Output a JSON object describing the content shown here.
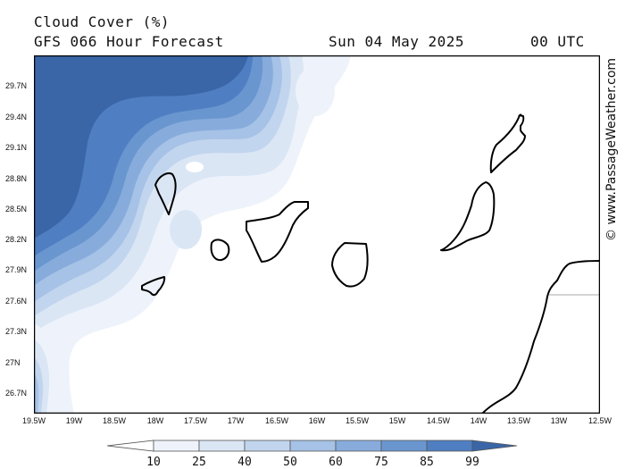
{
  "header": {
    "title": "Cloud Cover (%)",
    "subtitle": "GFS 066 Hour Forecast",
    "date": "Sun 04 May 2025",
    "time": "00 UTC"
  },
  "credit": "© www.PassageWeather.com",
  "axes": {
    "lat_labels": [
      "29.7N",
      "29.4N",
      "29.1N",
      "28.8N",
      "28.5N",
      "28.2N",
      "27.9N",
      "27.6N",
      "27.3N",
      "27N",
      "26.7N"
    ],
    "lon_labels": [
      "19.5W",
      "19W",
      "18.5W",
      "18W",
      "17.5W",
      "17W",
      "16.5W",
      "16W",
      "15.5W",
      "15W",
      "14.5W",
      "14W",
      "13.5W",
      "13W",
      "12.5W"
    ]
  },
  "legend": {
    "labels": [
      "10",
      "25",
      "40",
      "50",
      "60",
      "75",
      "85",
      "99"
    ],
    "colors": [
      "#ffffff",
      "#eef3fb",
      "#dbe6f5",
      "#c2d5ee",
      "#a6c2e6",
      "#87acdc",
      "#6a96d0",
      "#4f7fc2",
      "#3a66a7"
    ]
  },
  "map": {
    "region": "Canary Islands",
    "cloud_colors": {
      "c10": "#eef3fb",
      "c25": "#dbe6f5",
      "c40": "#c2d5ee",
      "c50": "#a6c2e6",
      "c60": "#87acdc",
      "c75": "#6a96d0",
      "c85": "#4f7fc2",
      "c99": "#3a66a7"
    }
  }
}
